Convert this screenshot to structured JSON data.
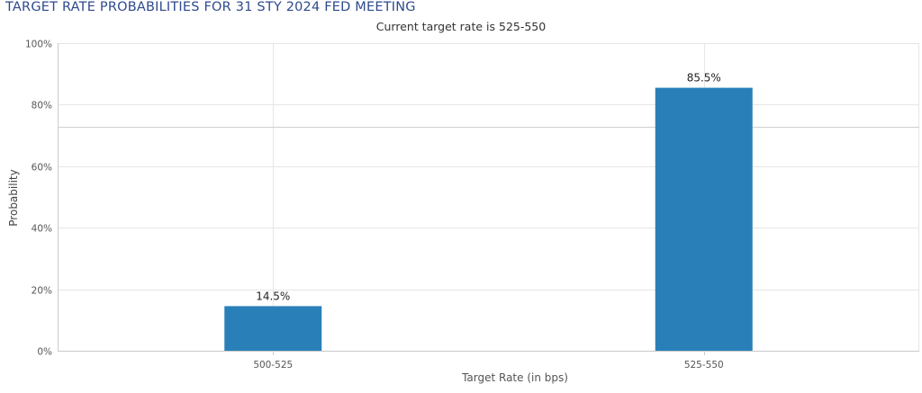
{
  "chart_data": {
    "type": "bar",
    "title": "TARGET RATE PROBABILITIES FOR 31 STY 2024 FED MEETING",
    "subtitle": "Current target rate is 525-550",
    "xlabel": "Target Rate (in bps)",
    "ylabel": "Probability",
    "categories": [
      "500-525",
      "525-550"
    ],
    "values": [
      14.5,
      85.5
    ],
    "data_labels": [
      "14.5%",
      "85.5%"
    ],
    "ylim": [
      0,
      100
    ],
    "yticks": [
      0,
      20,
      40,
      60,
      80,
      100
    ],
    "ytick_labels": [
      "0%",
      "20%",
      "40%",
      "60%",
      "80%",
      "100%"
    ],
    "bar_color": "#2980b9",
    "grid": true,
    "legend": "none"
  }
}
